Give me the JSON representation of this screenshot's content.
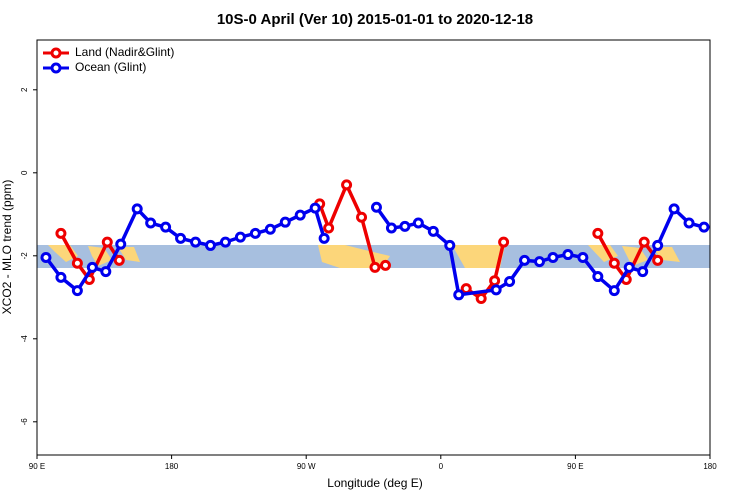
{
  "chart_data": {
    "type": "line",
    "title": "10S-0 April (Ver 10)   2015-01-01 to 2020-12-18",
    "x_label": "Longitude (deg E)",
    "y_label": "XCO2 - MLO trend (ppm)",
    "xlim": [
      90,
      540
    ],
    "ylim": [
      -6.8,
      3.2
    ],
    "xticks": [
      {
        "value": 90,
        "label": "90 E"
      },
      180,
      {
        "value": 270,
        "label": "90 W"
      },
      {
        "value": 360,
        "label": "0"
      },
      {
        "value": 450,
        "label": "90 E"
      },
      {
        "value": 540,
        "label": "180"
      }
    ],
    "yticks": [
      -6,
      -4,
      -2,
      0,
      2
    ],
    "legend": "top-left",
    "series": [
      {
        "name": "Land (Nadir&Glint)",
        "color": "#ee0000",
        "x": [
          106,
          117,
          125,
          137,
          145,
          200,
          279,
          285,
          297,
          307,
          316,
          323,
          350,
          377,
          387,
          396,
          402,
          430,
          465,
          476,
          484,
          496,
          505
        ],
        "values": [
          -1.46,
          -2.18,
          -2.57,
          -1.67,
          -2.11,
          null,
          -0.75,
          -1.33,
          -0.29,
          -1.07,
          -2.28,
          -2.23,
          null,
          -2.79,
          -3.03,
          -2.6,
          -1.67,
          null,
          -1.46,
          -2.18,
          -2.57,
          -1.67,
          -2.11
        ]
      },
      {
        "name": "Ocean (Glint)",
        "color": "#0000ee",
        "x": [
          96,
          106,
          117,
          127,
          136,
          146,
          157,
          166,
          176,
          186,
          196,
          206,
          216,
          226,
          236,
          246,
          256,
          266,
          276,
          282,
          300,
          317,
          327,
          336,
          345,
          355,
          366,
          372,
          397,
          406,
          416,
          426,
          435,
          445,
          455,
          465,
          476,
          486,
          495,
          505,
          516,
          526,
          536
        ],
        "values": [
          -2.04,
          -2.52,
          -2.84,
          -2.28,
          -2.38,
          -1.72,
          -0.87,
          -1.21,
          -1.31,
          -1.58,
          -1.67,
          -1.75,
          -1.67,
          -1.55,
          -1.46,
          -1.36,
          -1.19,
          -1.02,
          -0.85,
          -1.58,
          null,
          -0.83,
          -1.33,
          -1.29,
          -1.21,
          -1.41,
          -1.75,
          -2.94,
          -2.82,
          -2.62,
          -2.11,
          -2.14,
          -2.04,
          -1.97,
          -2.04,
          -2.5,
          -2.84,
          -2.28,
          -2.38,
          -1.75,
          -0.87,
          -1.21,
          -1.31
        ]
      }
    ]
  }
}
